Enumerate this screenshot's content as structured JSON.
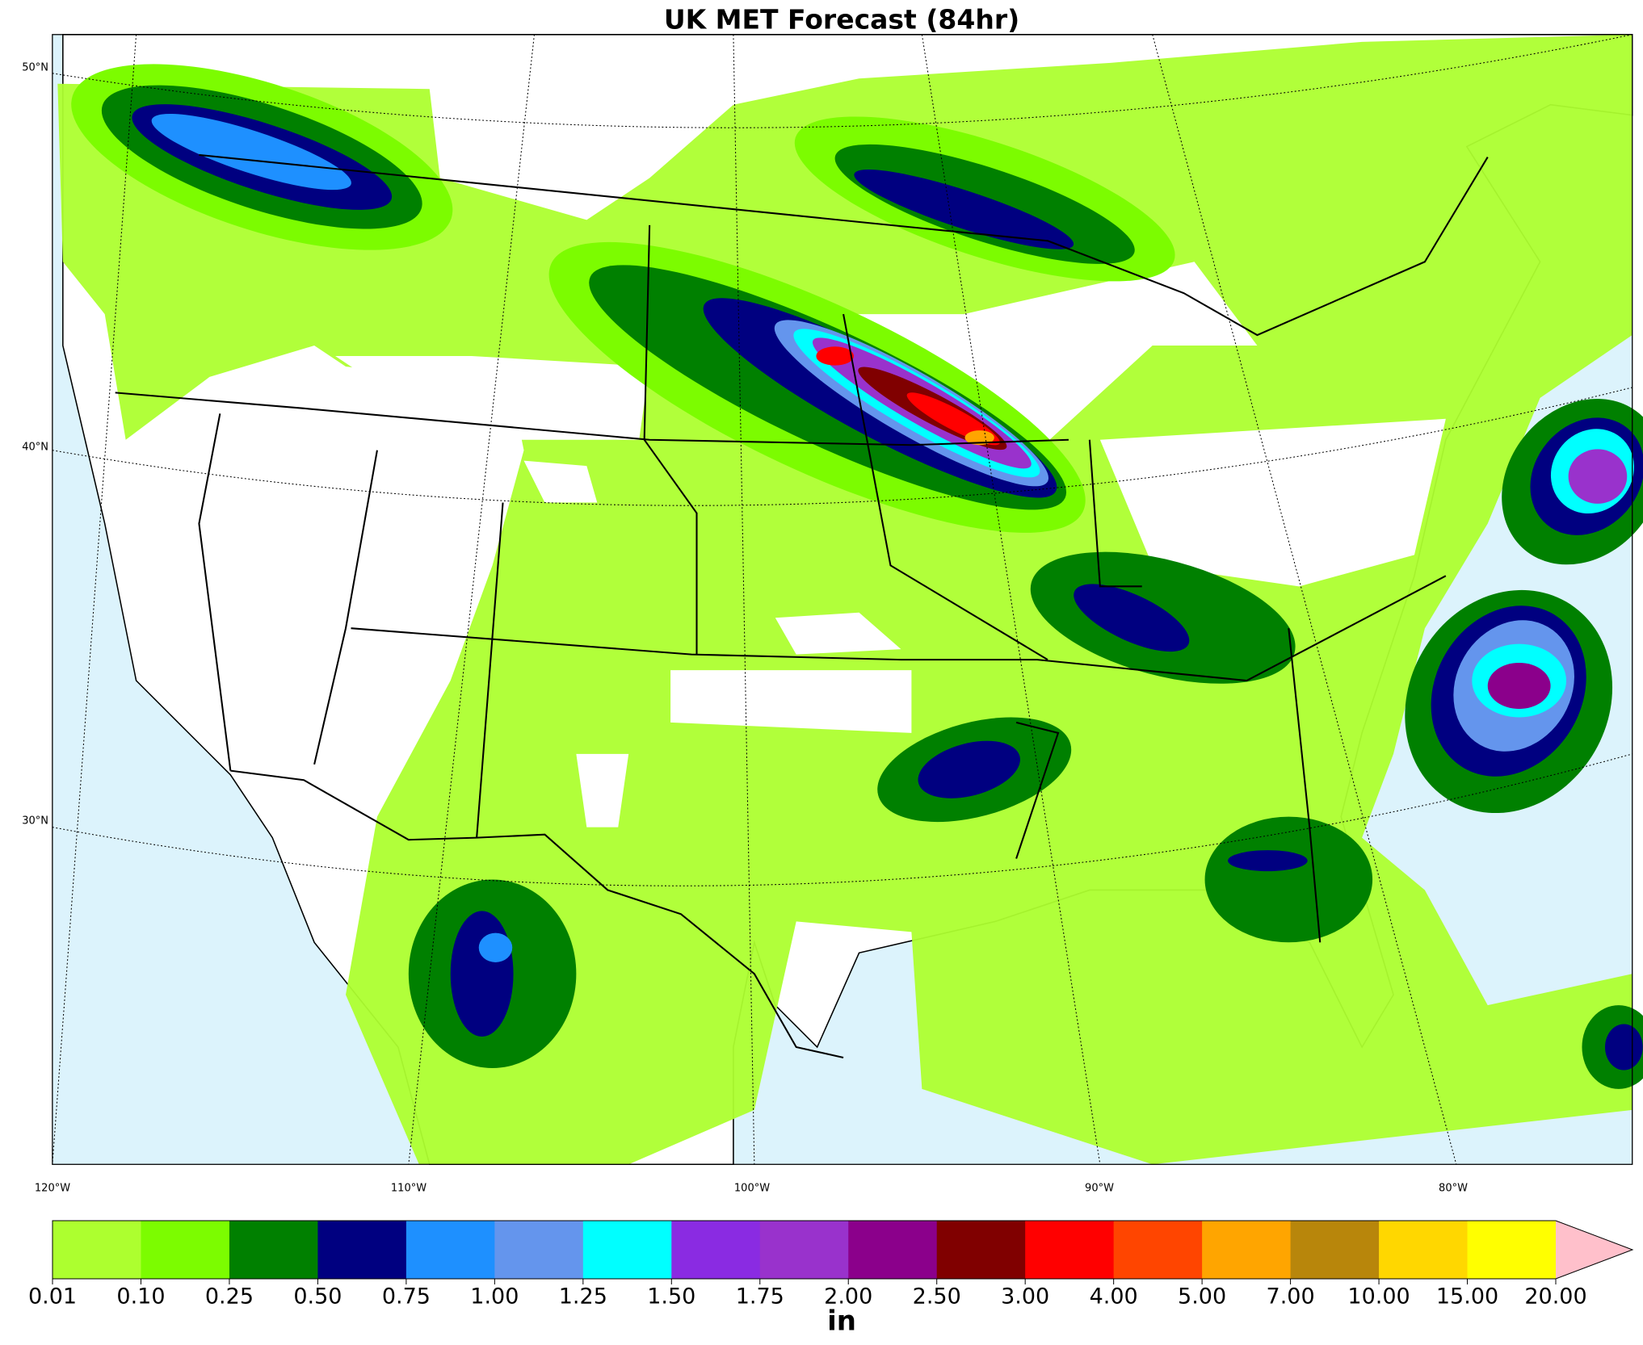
{
  "header": {
    "title": "UK MET Forecast (84hr)"
  },
  "map": {
    "lat_labels": [
      "50°N",
      "40°N",
      "30°N"
    ],
    "lon_labels": [
      "120°W",
      "110°W",
      "100°W",
      "90°W",
      "80°W"
    ]
  },
  "colorbar": {
    "ticks": [
      "0.01",
      "0.10",
      "0.25",
      "0.50",
      "0.75",
      "1.00",
      "1.25",
      "1.50",
      "1.75",
      "2.00",
      "2.50",
      "3.00",
      "4.00",
      "5.00",
      "7.00",
      "10.00",
      "15.00",
      "20.00"
    ],
    "colors": [
      "#adff2f",
      "#7cfc00",
      "#008000",
      "#000080",
      "#1e90ff",
      "#6495ed",
      "#00ffff",
      "#8a2be2",
      "#9932cc",
      "#8b008b",
      "#800000",
      "#ff0000",
      "#ff4500",
      "#ffa500",
      "#b8860b",
      "#ffd700",
      "#ffff00"
    ],
    "over_color": "#ffc0cb",
    "unit": "in"
  }
}
